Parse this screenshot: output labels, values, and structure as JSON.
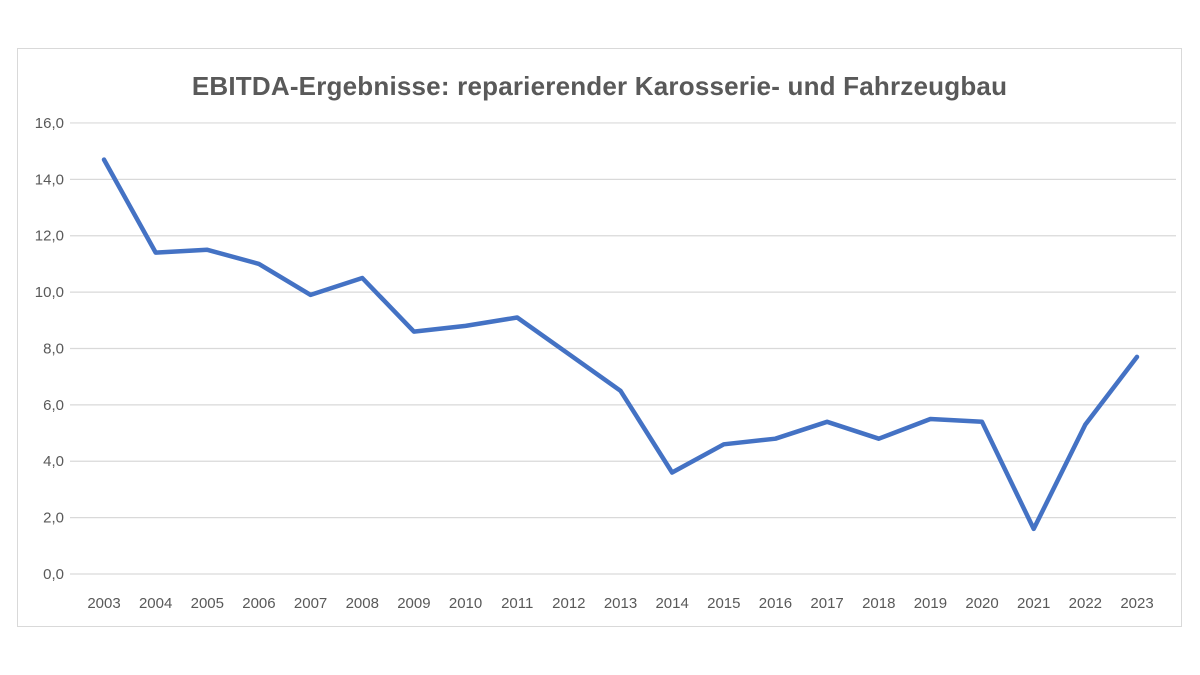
{
  "chart": {
    "colors": {
      "line": "#4472C4",
      "grid": "#D9D9D9",
      "frame_border": "#D9D9D9",
      "text": "#595959",
      "background": "#FFFFFF"
    }
  },
  "chart_data": {
    "type": "line",
    "title": "EBITDA-Ergebnisse: reparierender Karosserie- und Fahrzeugbau",
    "xlabel": "",
    "ylabel": "",
    "categories": [
      "2003",
      "2004",
      "2005",
      "2006",
      "2007",
      "2008",
      "2009",
      "2010",
      "2011",
      "2012",
      "2013",
      "2014",
      "2015",
      "2016",
      "2017",
      "2018",
      "2019",
      "2020",
      "2021",
      "2022",
      "2023"
    ],
    "values": [
      14.7,
      11.4,
      11.5,
      11.0,
      9.9,
      10.5,
      8.6,
      8.8,
      9.1,
      7.8,
      6.5,
      3.6,
      4.6,
      4.8,
      5.4,
      4.8,
      5.5,
      5.4,
      1.6,
      5.3,
      7.7
    ],
    "ylim": [
      0,
      16
    ],
    "ytick_step": 2,
    "ytick_labels": [
      "0,0",
      "2,0",
      "4,0",
      "6,0",
      "8,0",
      "10,0",
      "12,0",
      "14,0",
      "16,0"
    ],
    "grid": true,
    "legend": false,
    "series_name": "EBITDA",
    "decimal_style": "german-comma"
  }
}
